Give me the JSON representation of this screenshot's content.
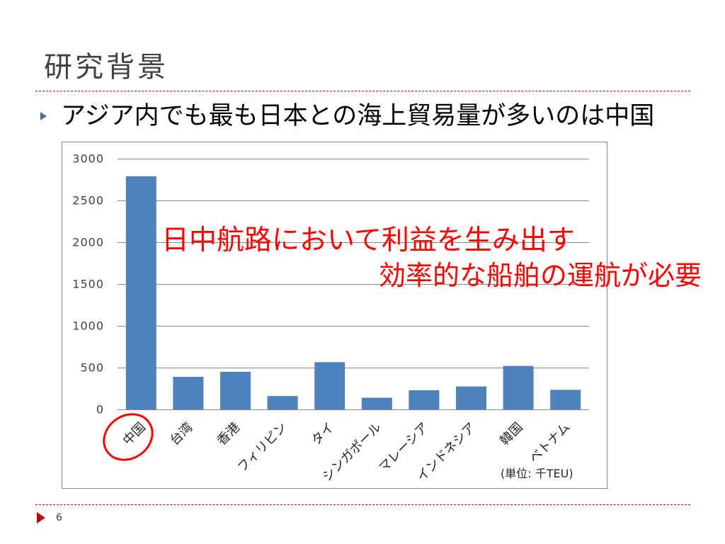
{
  "slide": {
    "title": "研究背景",
    "bullet": "アジア内でも最も日本との海上貿易量が多いのは中国",
    "callout": [
      "日中航路において利益を生み出す",
      "効率的な船舶の運航が必要"
    ],
    "page_number": "6"
  },
  "colors": {
    "accent": "#c00000",
    "bullet": "#4f6d8f",
    "bar": "#4f81bd",
    "callout": "#ff0000",
    "gridline": "#868686"
  },
  "chart_data": {
    "type": "bar",
    "title": "",
    "xlabel": "",
    "ylabel": "",
    "categories": [
      "中国",
      "台湾",
      "香港",
      "フィリピン",
      "タイ",
      "シンガポール",
      "マレーシア",
      "インドネシア",
      "韓国",
      "ベトナム"
    ],
    "values": [
      2790,
      390,
      450,
      160,
      565,
      140,
      230,
      275,
      520,
      235
    ],
    "ylim": [
      0,
      3000
    ],
    "yticks": [
      0,
      500,
      1000,
      1500,
      2000,
      2500,
      3000
    ],
    "grid": true,
    "unit_label": "(単位: 千TEU)"
  }
}
